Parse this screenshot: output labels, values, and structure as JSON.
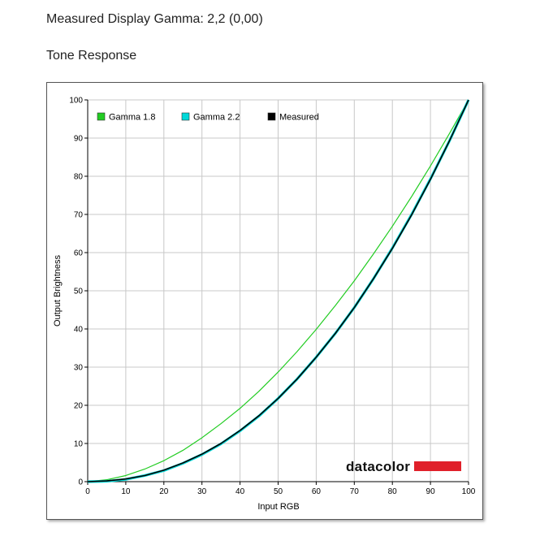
{
  "heading": "Measured Display Gamma: 2,2 (0,00)",
  "subheading": "Tone Response",
  "logo": {
    "text": "datacolor",
    "bar_color": "#e0202a"
  },
  "chart_data": {
    "type": "line",
    "xlabel": "Input RGB",
    "ylabel": "Output Brightness",
    "xlim": [
      0,
      100
    ],
    "ylim": [
      0,
      100
    ],
    "xticks": [
      0,
      10,
      20,
      30,
      40,
      50,
      60,
      70,
      80,
      90,
      100
    ],
    "yticks": [
      0,
      10,
      20,
      30,
      40,
      50,
      60,
      70,
      80,
      90,
      100
    ],
    "grid": true,
    "legend_position": "top-left",
    "x": [
      0,
      5,
      10,
      15,
      20,
      25,
      30,
      35,
      40,
      45,
      50,
      55,
      60,
      65,
      70,
      75,
      80,
      85,
      90,
      95,
      100
    ],
    "series": [
      {
        "name": "Gamma 1.8",
        "color": "#22cc22",
        "values": [
          0,
          0.5,
          1.6,
          3.3,
          5.5,
          8.2,
          11.5,
          15.2,
          19.2,
          23.7,
          28.7,
          34.1,
          39.9,
          46.1,
          52.6,
          59.6,
          66.9,
          74.6,
          82.7,
          91.2,
          100
        ]
      },
      {
        "name": "Gamma 2.2",
        "color": "#00d8d8",
        "values": [
          0,
          0.1,
          0.6,
          1.6,
          2.9,
          4.8,
          7.1,
          9.9,
          13.3,
          17.2,
          21.8,
          26.9,
          32.6,
          38.8,
          45.6,
          53.1,
          61.2,
          69.9,
          79.3,
          89.3,
          100
        ]
      },
      {
        "name": "Measured",
        "color": "#000000",
        "values": [
          0,
          0.2,
          0.7,
          1.6,
          3.0,
          4.9,
          7.2,
          10.0,
          13.4,
          17.3,
          21.8,
          26.9,
          32.6,
          38.8,
          45.6,
          53.1,
          61.1,
          69.8,
          79.2,
          89.3,
          100
        ]
      }
    ]
  }
}
